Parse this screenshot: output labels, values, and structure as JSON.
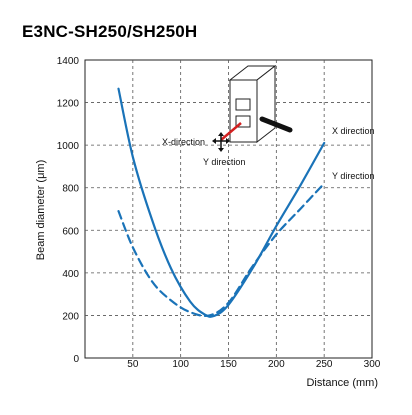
{
  "title": "E3NC-SH250/SH250H",
  "chart_data": {
    "type": "line",
    "title": "E3NC-SH250/SH250H",
    "xlabel": "Distance (mm)",
    "ylabel": "Beam diameter (μm)",
    "xlim": [
      0,
      300
    ],
    "ylim": [
      0,
      1400
    ],
    "xticks": [
      0,
      50,
      100,
      150,
      200,
      250,
      300
    ],
    "yticks": [
      200,
      400,
      600,
      800,
      1000,
      1200,
      1400
    ],
    "ytick_zero": "0",
    "grid": "dashed",
    "series": [
      {
        "name": "X direction",
        "style": "solid",
        "color": "#1a73b8",
        "x": [
          35,
          50,
          70,
          90,
          110,
          125,
          135,
          150,
          175,
          200,
          225,
          250
        ],
        "y": [
          1265,
          945,
          650,
          420,
          265,
          205,
          198,
          250,
          420,
          620,
          810,
          1010
        ]
      },
      {
        "name": "Y direction",
        "style": "dashed",
        "color": "#1a73b8",
        "x": [
          35,
          50,
          70,
          90,
          110,
          130,
          150,
          175,
          200,
          225,
          250
        ],
        "y": [
          690,
          520,
          360,
          270,
          215,
          200,
          260,
          430,
          580,
          700,
          820
        ]
      }
    ],
    "annotations": {
      "x_direction_label": "X-direction",
      "y_direction_label": "Y direction",
      "legend_x_label": "X direction",
      "legend_y_label": "Y direction"
    },
    "colors": {
      "curve": "#1a73b8",
      "grid": "#555555",
      "laser": "#d32020"
    }
  }
}
